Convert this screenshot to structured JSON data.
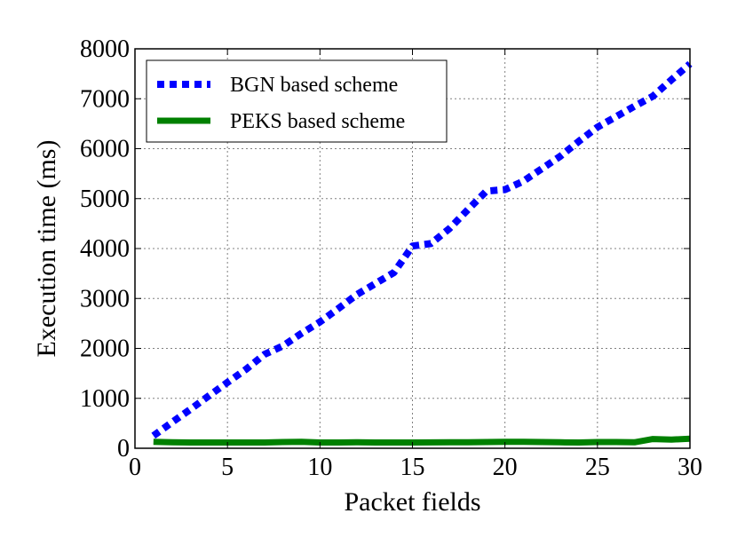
{
  "chart_data": {
    "type": "line",
    "xlabel": "Packet fields",
    "ylabel": "Execution time (ms)",
    "xlim": [
      0,
      30
    ],
    "ylim": [
      0,
      8000
    ],
    "xticks": [
      0,
      5,
      10,
      15,
      20,
      25,
      30
    ],
    "yticks": [
      0,
      1000,
      2000,
      3000,
      4000,
      5000,
      6000,
      7000,
      8000
    ],
    "grid": true,
    "legend_position": "top-left",
    "series": [
      {
        "name": "BGN based scheme",
        "color": "#0000ff",
        "style": "dotted",
        "x": [
          1,
          2,
          3,
          4,
          5,
          6,
          7,
          8,
          9,
          10,
          11,
          12,
          13,
          14,
          15,
          16,
          17,
          18,
          19,
          20,
          21,
          22,
          23,
          24,
          25,
          26,
          27,
          28,
          29,
          30
        ],
        "y": [
          250,
          520,
          780,
          1050,
          1320,
          1580,
          1880,
          2050,
          2300,
          2530,
          2800,
          3080,
          3300,
          3520,
          4050,
          4100,
          4400,
          4780,
          5150,
          5180,
          5350,
          5600,
          5850,
          6150,
          6430,
          6640,
          6850,
          7050,
          7380,
          7700
        ]
      },
      {
        "name": "PEKS based scheme",
        "color": "#008000",
        "style": "solid",
        "x": [
          1,
          2,
          3,
          4,
          5,
          6,
          7,
          8,
          9,
          10,
          11,
          12,
          13,
          14,
          15,
          16,
          17,
          18,
          19,
          20,
          21,
          22,
          23,
          24,
          25,
          26,
          27,
          28,
          29,
          30
        ],
        "y": [
          130,
          120,
          115,
          115,
          115,
          115,
          115,
          125,
          130,
          115,
          115,
          120,
          115,
          115,
          115,
          118,
          120,
          120,
          125,
          130,
          128,
          125,
          120,
          115,
          125,
          125,
          120,
          185,
          175,
          190
        ]
      }
    ]
  }
}
